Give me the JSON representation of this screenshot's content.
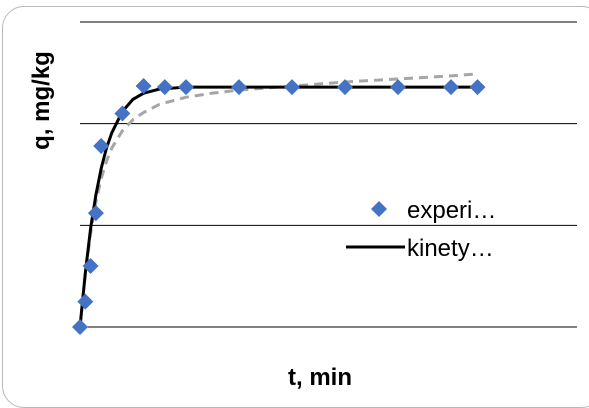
{
  "chart_data": {
    "type": "scatter",
    "title": "",
    "xlabel": "t, min",
    "ylabel": "q, mg/kg",
    "xlim": [
      0,
      82
    ],
    "ylim": [
      0,
      300
    ],
    "grid": true,
    "legend_position": "right",
    "series": [
      {
        "name": "experi…",
        "kind": "markers",
        "color": "#4472c4",
        "marker": "diamond",
        "x": [
          0,
          1,
          2,
          3,
          4,
          8,
          12,
          16,
          20,
          30,
          40,
          50,
          60,
          70,
          75
        ],
        "y": [
          0,
          25,
          60,
          112,
          178,
          210,
          237,
          236,
          236,
          236,
          236,
          236,
          236,
          236,
          236
        ]
      },
      {
        "name": "kinety…",
        "kind": "line",
        "color": "#000000",
        "x": [
          0,
          1,
          2,
          3,
          4,
          5,
          6,
          8,
          10,
          12,
          15,
          20,
          25,
          30,
          40,
          50,
          60,
          70,
          75
        ],
        "y": [
          0,
          53,
          97,
          130,
          156,
          176,
          191,
          212,
          224,
          230,
          234,
          236,
          236,
          236,
          236,
          236,
          236,
          236,
          236
        ]
      },
      {
        "name": "",
        "kind": "dashed-line",
        "color": "#a6a6a6",
        "x": [
          0,
          1,
          2,
          3,
          4,
          5,
          6,
          8,
          10,
          12,
          15,
          20,
          25,
          30,
          40,
          50,
          60,
          70,
          75
        ],
        "y": [
          0,
          52,
          92,
          123,
          146,
          163,
          176,
          193,
          204,
          211,
          219,
          226,
          230,
          233,
          237,
          241,
          244,
          247,
          249
        ]
      }
    ]
  }
}
